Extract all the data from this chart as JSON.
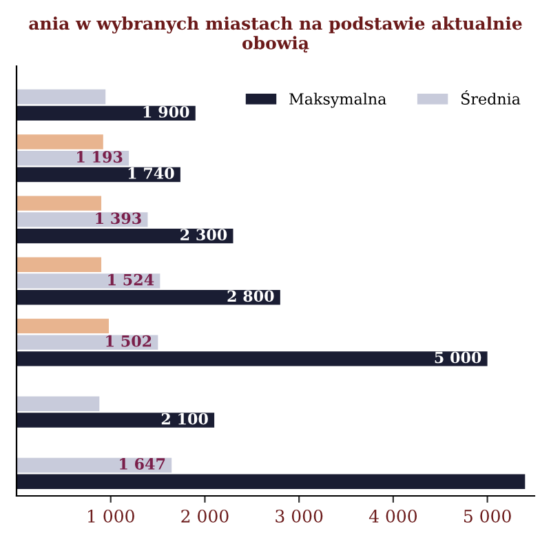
{
  "chart_data": {
    "type": "bar",
    "orientation": "horizontal",
    "title": "ania w wybranych miastach na podstawie aktualnie obowią",
    "categories": [
      null,
      null,
      null,
      null,
      null,
      null,
      null
    ],
    "series": [
      {
        "color": "#e8b48f",
        "values": [
          null,
          920,
          900,
          900,
          980,
          null,
          null
        ]
      },
      {
        "name": "Średnia",
        "color": "#c8cbdb",
        "values": [
          945,
          1193,
          1393,
          1524,
          1502,
          880,
          1647
        ],
        "value_labels": [
          null,
          "1 193",
          "1 393",
          "1 524",
          "1 502",
          null,
          "1 647"
        ]
      },
      {
        "name": "Maksymalna",
        "color": "#1a1d33",
        "values": [
          1900,
          1740,
          2300,
          2800,
          5000,
          2100,
          5400
        ],
        "value_labels": [
          "1 900",
          "1 740",
          "2 300",
          "2 800",
          "5 000",
          "2 100",
          null
        ]
      }
    ],
    "xlim": [
      0,
      5500
    ],
    "xticks": [
      {
        "value": 1000,
        "label": "1 000"
      },
      {
        "value": 2000,
        "label": "2 000"
      },
      {
        "value": 3000,
        "label": "3 000"
      },
      {
        "value": 4000,
        "label": "4 000"
      },
      {
        "value": 5000,
        "label": "5 000"
      }
    ],
    "legend": "top right"
  }
}
